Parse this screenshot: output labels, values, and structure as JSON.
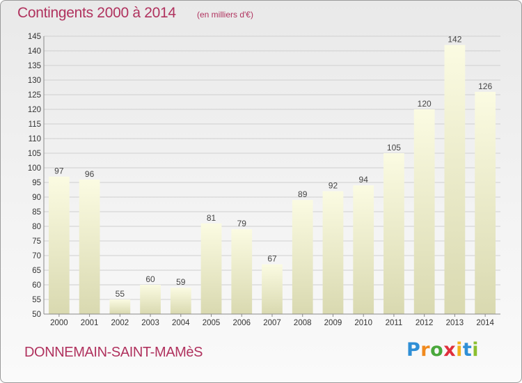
{
  "title": "Contingents 2000 à 2014",
  "subtitle": "(en milliers d'€)",
  "commune": "DONNEMAIN-SAINT-MAMèS",
  "logo": [
    "P",
    "r",
    "o",
    "x",
    "i",
    "t",
    "i"
  ],
  "colors": {
    "title": "#b0325e",
    "bar_top": "#fbfbe2",
    "bar_bottom": "#d9d9b0"
  },
  "chart_data": {
    "type": "bar",
    "title": "Contingents 2000 à 2014",
    "subtitle": "(en milliers d'€)",
    "categories": [
      "2000",
      "2001",
      "2002",
      "2003",
      "2004",
      "2005",
      "2006",
      "2007",
      "2008",
      "2009",
      "2010",
      "2011",
      "2012",
      "2013",
      "2014"
    ],
    "values": [
      97,
      96,
      55,
      60,
      59,
      81,
      79,
      67,
      89,
      92,
      94,
      105,
      120,
      142,
      126
    ],
    "ylim": [
      50,
      145
    ],
    "yticks": [
      50,
      55,
      60,
      65,
      70,
      75,
      80,
      85,
      90,
      95,
      100,
      105,
      110,
      115,
      120,
      125,
      130,
      135,
      140,
      145
    ],
    "grid": true,
    "data_labels": true
  }
}
